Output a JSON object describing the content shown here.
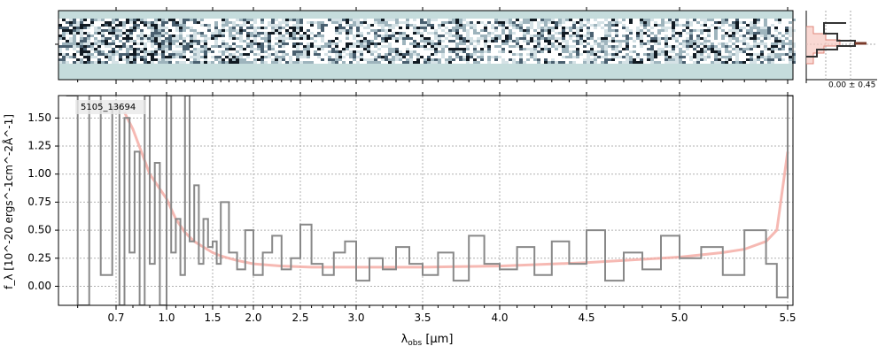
{
  "chart_data": {
    "type": "line",
    "object_label": "5105_13694",
    "xlabel_main": "λ",
    "xlabel_sub": "obs",
    "xlabel_unit": " [μm]",
    "ylabel": "f_λ [10^-20 ergs^-1cm^-2Å^-1]",
    "x_ticks": [
      0.7,
      1.0,
      1.5,
      2.0,
      2.5,
      3.0,
      3.5,
      4.0,
      4.5,
      5.0,
      5.5
    ],
    "x_tick_labels": [
      "0.7",
      "1.0",
      "1.5",
      "2.0",
      "2.5",
      "3.0",
      "3.5",
      "4.0",
      "4.5",
      "5.0",
      "5.5"
    ],
    "xlim": [
      0.55,
      5.52
    ],
    "y_ticks": [
      0.0,
      0.25,
      0.5,
      0.75,
      1.0,
      1.25,
      1.5
    ],
    "y_tick_labels": [
      "0.00",
      "0.25",
      "0.50",
      "0.75",
      "1.00",
      "1.25",
      "1.50"
    ],
    "ylim": [
      -0.17,
      1.7
    ],
    "grid": true,
    "series": [
      {
        "name": "",
        "style": "step",
        "color": "#888888",
        "x": [
          0.57,
          0.6,
          0.63,
          0.66,
          0.69,
          0.72,
          0.75,
          0.78,
          0.81,
          0.84,
          0.87,
          0.9,
          0.93,
          0.96,
          1.0,
          1.05,
          1.1,
          1.15,
          1.2,
          1.25,
          1.3,
          1.35,
          1.4,
          1.45,
          1.5,
          1.55,
          1.6,
          1.7,
          1.8,
          1.9,
          2.0,
          2.1,
          2.2,
          2.3,
          2.4,
          2.5,
          2.6,
          2.7,
          2.8,
          2.9,
          3.0,
          3.1,
          3.2,
          3.3,
          3.4,
          3.5,
          3.6,
          3.7,
          3.8,
          3.9,
          4.0,
          4.1,
          4.2,
          4.3,
          4.4,
          4.5,
          4.6,
          4.7,
          4.8,
          4.9,
          5.0,
          5.1,
          5.2,
          5.3,
          5.4,
          5.45,
          5.5
        ],
        "y": [
          1.7,
          -0.17,
          1.7,
          0.1,
          1.6,
          -0.17,
          1.5,
          0.3,
          1.2,
          -0.17,
          1.7,
          0.2,
          1.1,
          -0.17,
          1.7,
          0.3,
          0.6,
          0.1,
          1.7,
          0.4,
          0.9,
          0.2,
          0.6,
          0.35,
          0.4,
          0.2,
          0.75,
          0.3,
          0.15,
          0.5,
          0.1,
          0.3,
          0.45,
          0.15,
          0.25,
          0.55,
          0.2,
          0.1,
          0.3,
          0.4,
          0.05,
          0.25,
          0.15,
          0.35,
          0.2,
          0.1,
          0.3,
          0.05,
          0.45,
          0.2,
          0.15,
          0.35,
          0.1,
          0.4,
          0.2,
          0.5,
          0.05,
          0.3,
          0.15,
          0.45,
          0.25,
          0.35,
          0.1,
          0.5,
          0.2,
          -0.1,
          1.7
        ]
      },
      {
        "name": "",
        "style": "line",
        "color": "#f4a8a0",
        "x": [
          0.75,
          0.8,
          0.85,
          0.9,
          1.0,
          1.1,
          1.2,
          1.3,
          1.4,
          1.5,
          1.6,
          1.8,
          2.0,
          2.3,
          2.6,
          3.0,
          3.5,
          4.0,
          4.5,
          5.0,
          5.2,
          5.3,
          5.4,
          5.45,
          5.5
        ],
        "y": [
          1.55,
          1.4,
          1.2,
          1.0,
          0.78,
          0.6,
          0.48,
          0.4,
          0.35,
          0.3,
          0.27,
          0.23,
          0.2,
          0.18,
          0.17,
          0.17,
          0.17,
          0.18,
          0.21,
          0.26,
          0.3,
          0.33,
          0.4,
          0.5,
          1.2
        ]
      }
    ],
    "inset": {
      "type": "step",
      "label": "0.00 ± 0.45",
      "profile_color": "#333333",
      "model_color": "#f4a8a0"
    }
  }
}
